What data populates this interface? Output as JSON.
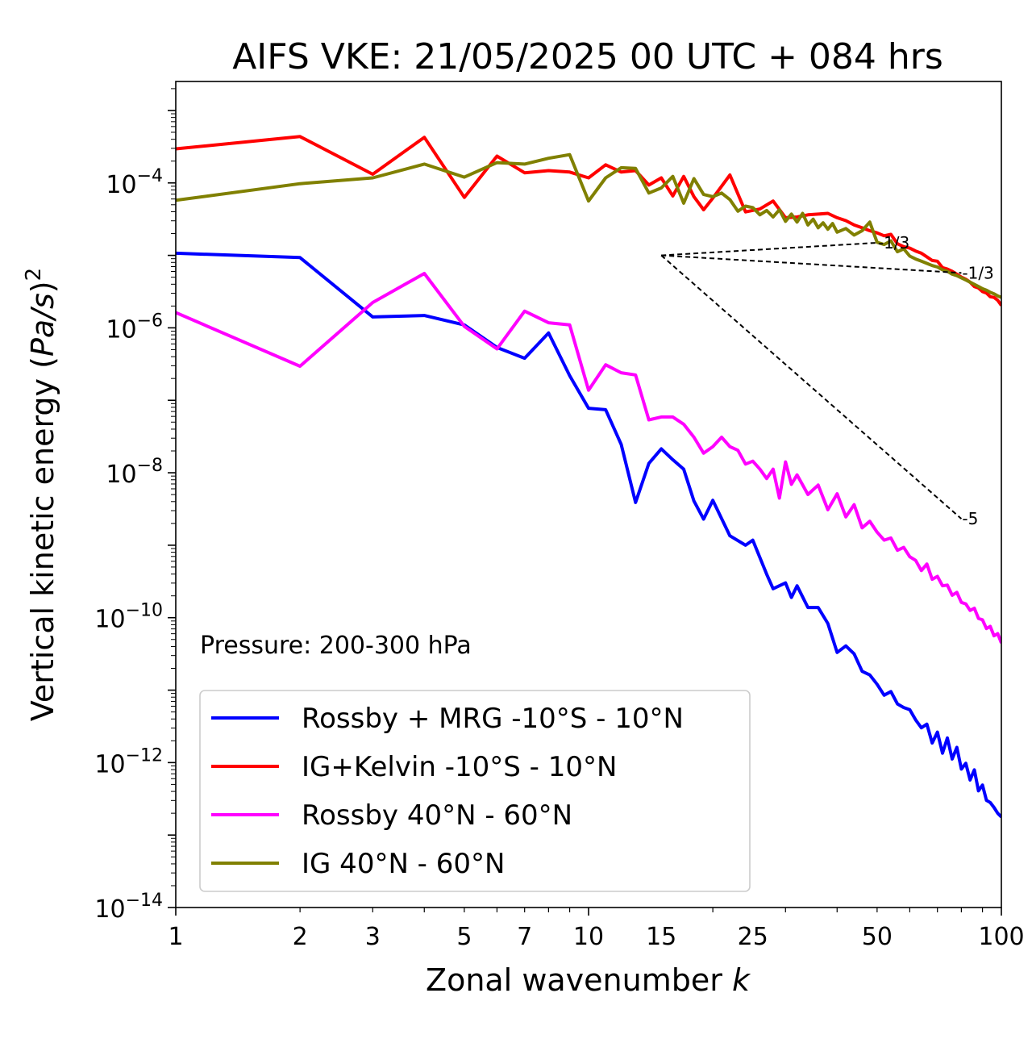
{
  "chart_data": {
    "type": "line",
    "title": "AIFS VKE: 21/05/2025 00 UTC + 084 hrs",
    "xlabel": "Zonal wavenumber",
    "xlabel_var": "k",
    "ylabel_main": "Vertical kinetic energy (",
    "ylabel_var": "Pa/s",
    "ylabel_close": ")",
    "ylabel_sup": "2",
    "x_scale": "log",
    "y_scale": "log",
    "xlim": [
      1,
      100
    ],
    "ylim_exp": [
      -14,
      -2.6
    ],
    "x_ticks": [
      {
        "value": 1,
        "label": "1"
      },
      {
        "value": 2,
        "label": "2"
      },
      {
        "value": 3,
        "label": "3"
      },
      {
        "value": 5,
        "label": "5"
      },
      {
        "value": 7,
        "label": "7"
      },
      {
        "value": 10,
        "label": "10"
      },
      {
        "value": 15,
        "label": "15"
      },
      {
        "value": 25,
        "label": "25"
      },
      {
        "value": 50,
        "label": "50"
      },
      {
        "value": 100,
        "label": "100"
      }
    ],
    "y_ticks": [
      {
        "exp": -4,
        "base": "10",
        "sup": "−4"
      },
      {
        "exp": -6,
        "base": "10",
        "sup": "−6"
      },
      {
        "exp": -8,
        "base": "10",
        "sup": "−8"
      },
      {
        "exp": -10,
        "base": "10",
        "sup": "−10"
      },
      {
        "exp": -12,
        "base": "10",
        "sup": "−12"
      },
      {
        "exp": -14,
        "base": "10",
        "sup": "−14"
      }
    ],
    "annotation": "Pressure: 200-300 hPa",
    "legend_position": "lower-left",
    "slope_lines": [
      {
        "label": "-1/3",
        "x": [
          15,
          50
        ],
        "y_exp": [
          -5.0,
          -4.826
        ]
      },
      {
        "label": "-1/3",
        "x": [
          15,
          80
        ],
        "y_exp": [
          -5.0,
          -5.242
        ]
      },
      {
        "label": "-5",
        "x": [
          15,
          80
        ],
        "y_exp": [
          -5.0,
          -8.635
        ]
      }
    ],
    "series": [
      {
        "name": "Rossby + MRG -10°S - 10°N",
        "color": "#0000ff",
        "points": [
          [
            1,
            -4.97
          ],
          [
            2,
            -5.03
          ],
          [
            3,
            -5.85
          ],
          [
            4,
            -5.83
          ],
          [
            5,
            -5.96
          ],
          [
            6,
            -6.27
          ],
          [
            7,
            -6.42
          ],
          [
            8,
            -6.07
          ],
          [
            9,
            -6.66
          ],
          [
            10,
            -7.11
          ],
          [
            11,
            -7.13
          ],
          [
            12,
            -7.61
          ],
          [
            13,
            -8.41
          ],
          [
            14,
            -7.87
          ],
          [
            15,
            -7.67
          ],
          [
            16,
            -7.82
          ],
          [
            17,
            -7.95
          ],
          [
            18,
            -8.39
          ],
          [
            19,
            -8.64
          ],
          [
            20,
            -8.38
          ],
          [
            22,
            -8.87
          ],
          [
            24,
            -9.0
          ],
          [
            25,
            -8.93
          ],
          [
            27,
            -9.4
          ],
          [
            28,
            -9.6
          ],
          [
            30,
            -9.52
          ],
          [
            31,
            -9.72
          ],
          [
            32,
            -9.56
          ],
          [
            34,
            -9.86
          ],
          [
            36,
            -9.86
          ],
          [
            38,
            -10.08
          ],
          [
            40,
            -10.48
          ],
          [
            42,
            -10.39
          ],
          [
            44,
            -10.5
          ],
          [
            46,
            -10.74
          ],
          [
            48,
            -10.79
          ],
          [
            50,
            -10.92
          ],
          [
            52,
            -11.07
          ],
          [
            54,
            -11.02
          ],
          [
            56,
            -11.19
          ],
          [
            58,
            -11.24
          ],
          [
            60,
            -11.27
          ],
          [
            62,
            -11.41
          ],
          [
            64,
            -11.52
          ],
          [
            66,
            -11.47
          ],
          [
            68,
            -11.73
          ],
          [
            70,
            -11.58
          ],
          [
            72,
            -11.87
          ],
          [
            74,
            -11.66
          ],
          [
            76,
            -11.95
          ],
          [
            78,
            -11.79
          ],
          [
            80,
            -12.09
          ],
          [
            82,
            -12.01
          ],
          [
            84,
            -12.24
          ],
          [
            86,
            -12.1
          ],
          [
            88,
            -12.39
          ],
          [
            90,
            -12.31
          ],
          [
            92,
            -12.52
          ],
          [
            94,
            -12.55
          ],
          [
            96,
            -12.62
          ],
          [
            98,
            -12.7
          ],
          [
            100,
            -12.75
          ]
        ]
      },
      {
        "name": "IG+Kelvin -10°S - 10°N",
        "color": "#ff0000",
        "points": [
          [
            1,
            -3.53
          ],
          [
            2,
            -3.36
          ],
          [
            3,
            -3.88
          ],
          [
            4,
            -3.37
          ],
          [
            5,
            -4.2
          ],
          [
            6,
            -3.63
          ],
          [
            7,
            -3.86
          ],
          [
            8,
            -3.83
          ],
          [
            9,
            -3.85
          ],
          [
            10,
            -3.93
          ],
          [
            11,
            -3.75
          ],
          [
            12,
            -3.85
          ],
          [
            13,
            -3.83
          ],
          [
            14,
            -4.03
          ],
          [
            15,
            -3.93
          ],
          [
            16,
            -4.18
          ],
          [
            17,
            -3.91
          ],
          [
            18,
            -4.19
          ],
          [
            19,
            -4.37
          ],
          [
            20,
            -4.21
          ],
          [
            22,
            -3.89
          ],
          [
            24,
            -4.4
          ],
          [
            26,
            -4.36
          ],
          [
            28,
            -4.25
          ],
          [
            30,
            -4.48
          ],
          [
            32,
            -4.47
          ],
          [
            34,
            -4.44
          ],
          [
            36,
            -4.43
          ],
          [
            38,
            -4.42
          ],
          [
            40,
            -4.48
          ],
          [
            42,
            -4.52
          ],
          [
            44,
            -4.58
          ],
          [
            46,
            -4.62
          ],
          [
            48,
            -4.66
          ],
          [
            50,
            -4.69
          ],
          [
            52,
            -4.73
          ],
          [
            54,
            -4.71
          ],
          [
            56,
            -4.84
          ],
          [
            58,
            -4.88
          ],
          [
            60,
            -4.9
          ],
          [
            62,
            -4.94
          ],
          [
            64,
            -4.97
          ],
          [
            66,
            -5.02
          ],
          [
            68,
            -5.07
          ],
          [
            70,
            -5.08
          ],
          [
            72,
            -5.17
          ],
          [
            74,
            -5.19
          ],
          [
            76,
            -5.22
          ],
          [
            78,
            -5.26
          ],
          [
            80,
            -5.3
          ],
          [
            82,
            -5.33
          ],
          [
            84,
            -5.37
          ],
          [
            86,
            -5.43
          ],
          [
            88,
            -5.45
          ],
          [
            90,
            -5.5
          ],
          [
            92,
            -5.52
          ],
          [
            94,
            -5.57
          ],
          [
            96,
            -5.58
          ],
          [
            98,
            -5.62
          ],
          [
            100,
            -5.69
          ]
        ]
      },
      {
        "name": "Rossby 40°N - 60°N",
        "color": "#ff00ff",
        "points": [
          [
            1,
            -5.79
          ],
          [
            2,
            -6.53
          ],
          [
            3,
            -5.65
          ],
          [
            4,
            -5.25
          ],
          [
            5,
            -5.98
          ],
          [
            6,
            -6.29
          ],
          [
            7,
            -5.77
          ],
          [
            8,
            -5.93
          ],
          [
            9,
            -5.96
          ],
          [
            10,
            -6.86
          ],
          [
            11,
            -6.51
          ],
          [
            12,
            -6.62
          ],
          [
            13,
            -6.65
          ],
          [
            14,
            -7.27
          ],
          [
            15,
            -7.23
          ],
          [
            16,
            -7.23
          ],
          [
            17,
            -7.33
          ],
          [
            18,
            -7.51
          ],
          [
            19,
            -7.73
          ],
          [
            20,
            -7.64
          ],
          [
            21,
            -7.51
          ],
          [
            22,
            -7.64
          ],
          [
            23,
            -7.69
          ],
          [
            24,
            -7.88
          ],
          [
            25,
            -7.84
          ],
          [
            26,
            -7.95
          ],
          [
            27,
            -8.08
          ],
          [
            28,
            -7.95
          ],
          [
            29,
            -8.35
          ],
          [
            30,
            -7.85
          ],
          [
            31,
            -8.16
          ],
          [
            32,
            -8.03
          ],
          [
            34,
            -8.3
          ],
          [
            36,
            -8.17
          ],
          [
            38,
            -8.51
          ],
          [
            40,
            -8.29
          ],
          [
            42,
            -8.61
          ],
          [
            44,
            -8.44
          ],
          [
            46,
            -8.76
          ],
          [
            48,
            -8.67
          ],
          [
            50,
            -8.82
          ],
          [
            52,
            -8.93
          ],
          [
            54,
            -8.9
          ],
          [
            56,
            -9.07
          ],
          [
            58,
            -9.03
          ],
          [
            60,
            -9.16
          ],
          [
            62,
            -9.21
          ],
          [
            64,
            -9.35
          ],
          [
            66,
            -9.26
          ],
          [
            68,
            -9.47
          ],
          [
            70,
            -9.43
          ],
          [
            72,
            -9.56
          ],
          [
            74,
            -9.55
          ],
          [
            76,
            -9.69
          ],
          [
            78,
            -9.65
          ],
          [
            80,
            -9.79
          ],
          [
            82,
            -9.81
          ],
          [
            84,
            -9.9
          ],
          [
            86,
            -9.87
          ],
          [
            88,
            -10.01
          ],
          [
            90,
            -10.03
          ],
          [
            92,
            -10.15
          ],
          [
            94,
            -10.12
          ],
          [
            96,
            -10.25
          ],
          [
            98,
            -10.22
          ],
          [
            100,
            -10.35
          ]
        ]
      },
      {
        "name": "IG 40°N - 60°N",
        "color": "#808000",
        "points": [
          [
            1,
            -4.24
          ],
          [
            2,
            -4.01
          ],
          [
            3,
            -3.93
          ],
          [
            4,
            -3.74
          ],
          [
            5,
            -3.92
          ],
          [
            6,
            -3.72
          ],
          [
            7,
            -3.74
          ],
          [
            8,
            -3.66
          ],
          [
            9,
            -3.61
          ],
          [
            10,
            -4.25
          ],
          [
            11,
            -3.93
          ],
          [
            12,
            -3.79
          ],
          [
            13,
            -3.8
          ],
          [
            14,
            -4.14
          ],
          [
            15,
            -4.07
          ],
          [
            16,
            -3.91
          ],
          [
            17,
            -4.28
          ],
          [
            18,
            -3.94
          ],
          [
            19,
            -4.16
          ],
          [
            20,
            -4.19
          ],
          [
            21,
            -4.14
          ],
          [
            22,
            -4.23
          ],
          [
            23,
            -4.39
          ],
          [
            24,
            -4.32
          ],
          [
            25,
            -4.34
          ],
          [
            26,
            -4.44
          ],
          [
            27,
            -4.38
          ],
          [
            28,
            -4.47
          ],
          [
            29,
            -4.37
          ],
          [
            30,
            -4.53
          ],
          [
            31,
            -4.43
          ],
          [
            32,
            -4.54
          ],
          [
            33,
            -4.42
          ],
          [
            34,
            -4.58
          ],
          [
            35,
            -4.5
          ],
          [
            36,
            -4.62
          ],
          [
            37,
            -4.55
          ],
          [
            38,
            -4.64
          ],
          [
            39,
            -4.56
          ],
          [
            40,
            -4.68
          ],
          [
            42,
            -4.63
          ],
          [
            44,
            -4.72
          ],
          [
            46,
            -4.66
          ],
          [
            48,
            -4.54
          ],
          [
            50,
            -4.82
          ],
          [
            52,
            -4.85
          ],
          [
            54,
            -4.8
          ],
          [
            56,
            -4.95
          ],
          [
            58,
            -4.91
          ],
          [
            60,
            -5.01
          ],
          [
            62,
            -5.05
          ],
          [
            64,
            -5.08
          ],
          [
            66,
            -5.11
          ],
          [
            68,
            -5.14
          ],
          [
            70,
            -5.16
          ],
          [
            72,
            -5.2
          ],
          [
            74,
            -5.22
          ],
          [
            76,
            -5.26
          ],
          [
            78,
            -5.28
          ],
          [
            80,
            -5.31
          ],
          [
            82,
            -5.34
          ],
          [
            84,
            -5.37
          ],
          [
            86,
            -5.4
          ],
          [
            88,
            -5.43
          ],
          [
            90,
            -5.46
          ],
          [
            92,
            -5.48
          ],
          [
            94,
            -5.51
          ],
          [
            96,
            -5.53
          ],
          [
            98,
            -5.56
          ],
          [
            100,
            -5.58
          ]
        ]
      }
    ]
  }
}
